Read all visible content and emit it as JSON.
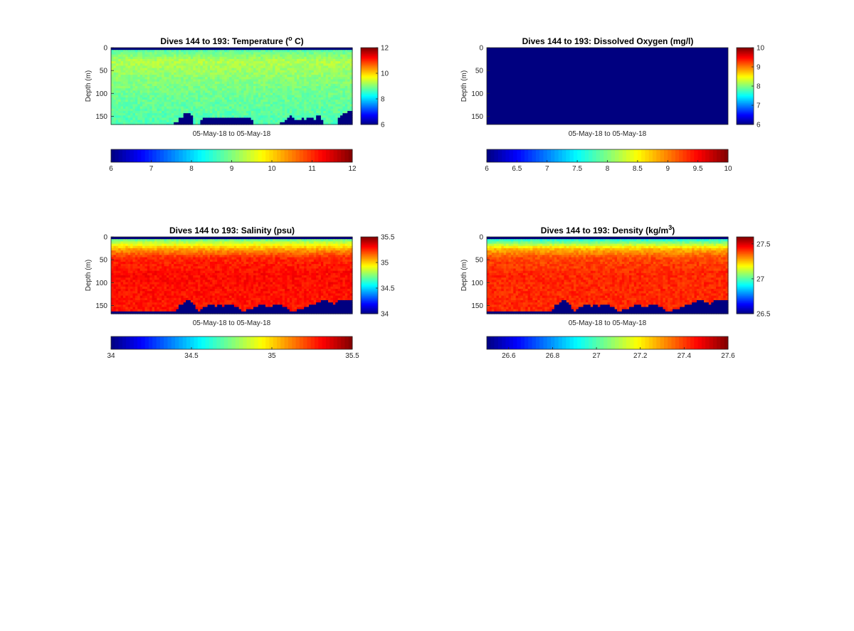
{
  "figure": {
    "background": "#ffffff",
    "colormap": "jet"
  },
  "chart_data": [
    {
      "type": "heatmap",
      "id": "temperature",
      "title": {
        "main": "Dives 144 to 193: Temperature (",
        "sup": "o",
        "post": " C)"
      },
      "xlabel": "05-May-18 to 05-May-18",
      "ylabel": "Depth (m)",
      "ylim": [
        0,
        168
      ],
      "y_reversed": true,
      "yticks": [
        0,
        50,
        100,
        150
      ],
      "ytick_labels": [
        "0",
        "50",
        "100",
        "150"
      ],
      "clim": [
        6,
        12
      ],
      "side_colorbar_ticks": [
        6,
        8,
        10,
        12
      ],
      "side_colorbar_tick_labels": [
        "6",
        "8",
        "10",
        "12"
      ],
      "bottom_colorbar_ticks": [
        6,
        7,
        8,
        9,
        10,
        11,
        12
      ],
      "bottom_colorbar_tick_labels": [
        "6",
        "7",
        "8",
        "9",
        "10",
        "11",
        "12"
      ],
      "profiles": 100,
      "depth_bins": 34,
      "surface_value": 6,
      "surface_depth_m": 3,
      "layers": [
        {
          "depth": 0,
          "value": 8.6
        },
        {
          "depth": 15,
          "value": 9.0
        },
        {
          "depth": 30,
          "value": 9.3
        },
        {
          "depth": 60,
          "value": 9.1
        },
        {
          "depth": 100,
          "value": 8.9
        },
        {
          "depth": 168,
          "value": 8.7
        }
      ],
      "bottom_profile_m": [
        168,
        168,
        168,
        168,
        168,
        168,
        168,
        168,
        167,
        167,
        167,
        168,
        168,
        168,
        168,
        168,
        168,
        168,
        168,
        168,
        168,
        168,
        168,
        168,
        168,
        168,
        165,
        163,
        155,
        152,
        145,
        142,
        143,
        146,
        168,
        168,
        168,
        158,
        152,
        151,
        151,
        151,
        151,
        151,
        151,
        151,
        151,
        151,
        151,
        151,
        151,
        151,
        151,
        151,
        151,
        151,
        151,
        155,
        160,
        168,
        168,
        168,
        168,
        168,
        168,
        168,
        168,
        168,
        168,
        168,
        162,
        162,
        160,
        152,
        150,
        152,
        158,
        160,
        158,
        155,
        160,
        153,
        152,
        155,
        158,
        150,
        148,
        156,
        168,
        168,
        168,
        168,
        168,
        168,
        152,
        146,
        144,
        142,
        140,
        140
      ]
    },
    {
      "type": "heatmap",
      "id": "dissolved-oxygen",
      "title": {
        "main": "Dives 144 to 193: Dissolved Oxygen (mg/l)",
        "sup": "",
        "post": ""
      },
      "xlabel": "05-May-18 to 05-May-18",
      "ylabel": "Depth (m)",
      "ylim": [
        0,
        168
      ],
      "y_reversed": true,
      "yticks": [
        0,
        50,
        100,
        150
      ],
      "ytick_labels": [
        "0",
        "50",
        "100",
        "150"
      ],
      "clim": [
        6,
        10
      ],
      "side_colorbar_ticks": [
        6,
        7,
        8,
        9,
        10
      ],
      "side_colorbar_tick_labels": [
        "6",
        "7",
        "8",
        "9",
        "10"
      ],
      "bottom_colorbar_ticks": [
        6,
        6.5,
        7,
        7.5,
        8,
        8.5,
        9,
        9.5,
        10
      ],
      "bottom_colorbar_tick_labels": [
        "6",
        "6.5",
        "7",
        "7.5",
        "8",
        "8.5",
        "9",
        "9.5",
        "10"
      ],
      "profiles": 100,
      "depth_bins": 34,
      "uniform_value": 6
    },
    {
      "type": "heatmap",
      "id": "salinity",
      "title": {
        "main": "Dives 144 to 193: Salinity (psu)",
        "sup": "",
        "post": ""
      },
      "xlabel": "05-May-18 to 05-May-18",
      "ylabel": "Depth (m)",
      "ylim": [
        0,
        168
      ],
      "y_reversed": true,
      "yticks": [
        0,
        50,
        100,
        150
      ],
      "ytick_labels": [
        "0",
        "50",
        "100",
        "150"
      ],
      "clim": [
        34,
        35.5
      ],
      "side_colorbar_ticks": [
        34,
        34.5,
        35,
        35.5
      ],
      "side_colorbar_tick_labels": [
        "34",
        "34.5",
        "35",
        "35.5"
      ],
      "bottom_colorbar_ticks": [
        34,
        34.5,
        35,
        35.5
      ],
      "bottom_colorbar_tick_labels": [
        "34",
        "34.5",
        "35",
        "35.5"
      ],
      "profiles": 100,
      "depth_bins": 34,
      "surface_value": 34,
      "surface_depth_m": 3,
      "layers": [
        {
          "depth": 0,
          "value": 34.6
        },
        {
          "depth": 10,
          "value": 34.8
        },
        {
          "depth": 25,
          "value": 35.05
        },
        {
          "depth": 45,
          "value": 35.25
        },
        {
          "depth": 80,
          "value": 35.3
        },
        {
          "depth": 168,
          "value": 35.28
        }
      ],
      "bottom_profile_m": [
        162,
        162,
        162,
        162,
        162,
        162,
        162,
        162,
        162,
        165,
        165,
        165,
        165,
        165,
        165,
        165,
        165,
        165,
        165,
        165,
        165,
        165,
        165,
        165,
        165,
        165,
        162,
        158,
        150,
        148,
        142,
        140,
        140,
        142,
        150,
        158,
        162,
        160,
        155,
        152,
        150,
        148,
        150,
        152,
        150,
        150,
        152,
        150,
        150,
        148,
        150,
        152,
        155,
        158,
        162,
        165,
        160,
        158,
        156,
        154,
        152,
        150,
        148,
        150,
        152,
        154,
        152,
        150,
        148,
        148,
        150,
        152,
        154,
        158,
        162,
        165,
        162,
        160,
        158,
        156,
        154,
        152,
        150,
        148,
        146,
        144,
        142,
        140,
        140,
        140,
        142,
        144,
        146,
        142,
        140,
        138,
        136,
        136,
        136,
        136
      ]
    },
    {
      "type": "heatmap",
      "id": "density",
      "title": {
        "main": "Dives 144 to 193: Density (kg/m",
        "sup": "3",
        "post": ")"
      },
      "xlabel": "05-May-18 to 05-May-18",
      "ylabel": "Depth (m)",
      "ylim": [
        0,
        168
      ],
      "y_reversed": true,
      "yticks": [
        0,
        50,
        100,
        150
      ],
      "ytick_labels": [
        "0",
        "50",
        "100",
        "150"
      ],
      "clim": [
        26.5,
        27.6
      ],
      "side_colorbar_ticks": [
        26.5,
        27,
        27.5
      ],
      "side_colorbar_tick_labels": [
        "26.5",
        "27",
        "27.5"
      ],
      "bottom_colorbar_ticks": [
        26.6,
        26.8,
        27,
        27.2,
        27.4,
        27.6
      ],
      "bottom_colorbar_tick_labels": [
        "26.6",
        "26.8",
        "27",
        "27.2",
        "27.4",
        "27.6"
      ],
      "profiles": 100,
      "depth_bins": 34,
      "surface_value": 26.5,
      "surface_depth_m": 3,
      "layers": [
        {
          "depth": 0,
          "value": 26.9
        },
        {
          "depth": 10,
          "value": 27.0
        },
        {
          "depth": 25,
          "value": 27.25
        },
        {
          "depth": 45,
          "value": 27.38
        },
        {
          "depth": 80,
          "value": 27.42
        },
        {
          "depth": 168,
          "value": 27.42
        }
      ],
      "bottom_profile_m": [
        162,
        162,
        162,
        162,
        162,
        162,
        162,
        162,
        162,
        165,
        165,
        165,
        165,
        165,
        165,
        165,
        165,
        165,
        165,
        165,
        165,
        165,
        165,
        165,
        165,
        165,
        162,
        158,
        150,
        148,
        142,
        140,
        140,
        142,
        150,
        158,
        162,
        160,
        155,
        152,
        150,
        148,
        150,
        152,
        150,
        150,
        152,
        150,
        150,
        148,
        150,
        152,
        155,
        158,
        162,
        165,
        160,
        158,
        156,
        154,
        152,
        150,
        148,
        150,
        152,
        154,
        152,
        150,
        148,
        148,
        150,
        152,
        154,
        158,
        162,
        165,
        162,
        160,
        158,
        156,
        154,
        152,
        150,
        148,
        146,
        144,
        142,
        140,
        140,
        140,
        142,
        144,
        146,
        142,
        140,
        138,
        136,
        136,
        136,
        136
      ]
    }
  ]
}
